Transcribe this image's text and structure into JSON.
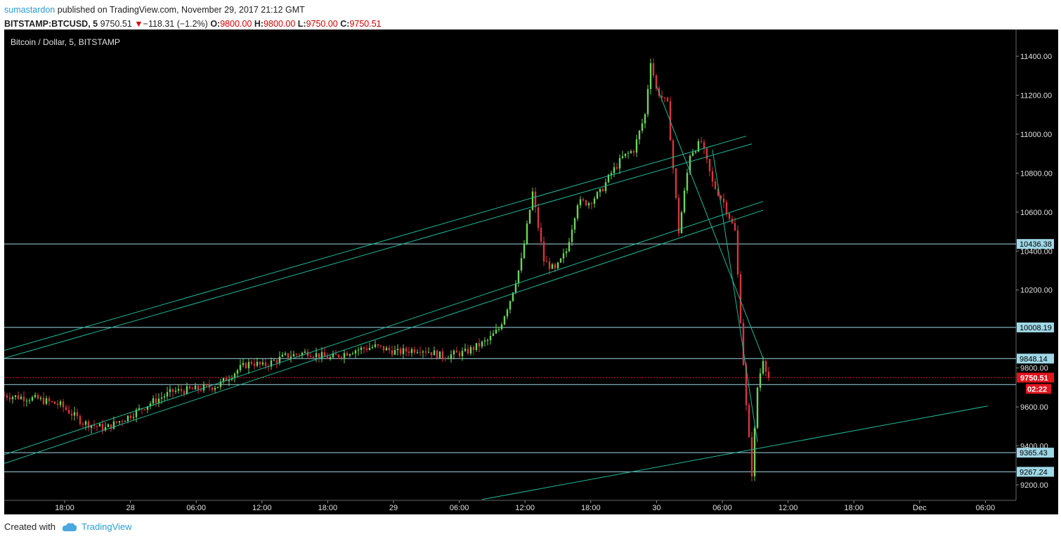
{
  "header": {
    "author": "sumastardon",
    "published_text": "published on TradingView.com, November 29, 2017 21:12 GMT",
    "symbol": "BITSTAMP:BTCUSD, 5",
    "price": "9750.51",
    "change": "−118.31 (−1.2%)",
    "o_label": "O:",
    "o_value": "9800.00",
    "h_label": "H:",
    "h_value": "9800.00",
    "l_label": "L:",
    "l_value": "9750.00",
    "c_label": "C:",
    "c_value": "9750.51"
  },
  "chart_data": {
    "type": "candlestick",
    "title": "Bitcoin / Dollar, 5, BITSTAMP",
    "ylim": [
      9130,
      11480
    ],
    "y_ticks": [
      "11400.00",
      "11200.00",
      "11000.00",
      "10800.00",
      "10600.00",
      "10400.00",
      "10200.00",
      "9800.00",
      "9600.00",
      "9400.00",
      "9200.00"
    ],
    "x_ticks": [
      "18:00",
      "28",
      "06:00",
      "12:00",
      "18:00",
      "29",
      "06:00",
      "12:00",
      "18:00",
      "30",
      "06:00",
      "12:00",
      "18:00",
      "Dec",
      "06:00"
    ],
    "price_path": [
      [
        0,
        9660
      ],
      [
        6,
        9640
      ],
      [
        10,
        9610
      ],
      [
        14,
        9520
      ],
      [
        18,
        9490
      ],
      [
        22,
        9550
      ],
      [
        26,
        9620
      ],
      [
        30,
        9680
      ],
      [
        34,
        9690
      ],
      [
        38,
        9710
      ],
      [
        42,
        9800
      ],
      [
        44,
        9830
      ],
      [
        46,
        9810
      ],
      [
        50,
        9860
      ],
      [
        54,
        9880
      ],
      [
        58,
        9850
      ],
      [
        62,
        9890
      ],
      [
        66,
        9910
      ],
      [
        70,
        9880
      ],
      [
        74,
        9900
      ],
      [
        78,
        9860
      ],
      [
        82,
        9880
      ],
      [
        86,
        9940
      ],
      [
        88,
        10000
      ],
      [
        90,
        10150
      ],
      [
        92,
        10350
      ],
      [
        94,
        10700
      ],
      [
        96,
        10350
      ],
      [
        98,
        10300
      ],
      [
        100,
        10400
      ],
      [
        102,
        10650
      ],
      [
        104,
        10650
      ],
      [
        106,
        10700
      ],
      [
        108,
        10800
      ],
      [
        110,
        10880
      ],
      [
        112,
        10920
      ],
      [
        114,
        11100
      ],
      [
        115,
        11380
      ],
      [
        116,
        11230
      ],
      [
        118,
        11150
      ],
      [
        120,
        10500
      ],
      [
        122,
        10900
      ],
      [
        124,
        10960
      ],
      [
        126,
        10750
      ],
      [
        128,
        10650
      ],
      [
        130,
        10500
      ],
      [
        131,
        10050
      ],
      [
        132,
        9600
      ],
      [
        133,
        9260
      ],
      [
        134,
        9700
      ],
      [
        135,
        9850
      ],
      [
        136,
        9750
      ]
    ],
    "trend_lines": [
      {
        "points": [
          [
            0,
            9890
          ],
          [
            132,
            10990
          ]
        ],
        "color": "#1fb99a"
      },
      {
        "points": [
          [
            0,
            9850
          ],
          [
            133,
            10950
          ]
        ],
        "color": "#1fb99a"
      },
      {
        "points": [
          [
            0,
            9355
          ],
          [
            135,
            10655
          ]
        ],
        "color": "#1fb99a"
      },
      {
        "points": [
          [
            0,
            9310
          ],
          [
            135,
            10610
          ]
        ],
        "color": "#1fb99a"
      },
      {
        "points": [
          [
            85,
            9125
          ],
          [
            175,
            9605
          ]
        ],
        "color": "#1fb99a"
      },
      {
        "points": [
          [
            116,
            11250
          ],
          [
            135,
            9850
          ]
        ],
        "color": "#1fb99a"
      },
      {
        "points": [
          [
            126,
            10920
          ],
          [
            134,
            9420
          ]
        ],
        "color": "#1fb99a"
      }
    ],
    "horizontal_levels": [
      {
        "value": 10436.38,
        "label": "10436.38"
      },
      {
        "value": 10008.19,
        "label": "10008.19"
      },
      {
        "value": 9848.14,
        "label": "9848.14"
      },
      {
        "value": 9715,
        "label": ""
      },
      {
        "value": 9365.43,
        "label": "9365.43"
      },
      {
        "value": 9267.24,
        "label": "9267.24"
      }
    ],
    "current_price": {
      "value": 9750.51,
      "label": "9750.51",
      "countdown": "02:22"
    },
    "colors": {
      "background": "#000000",
      "up": "#6cd45a",
      "down": "#d9353c",
      "trend": "#1fb99a",
      "level": "#9fd8e6",
      "current": "#e2141c"
    }
  },
  "footer": {
    "created_with": "Created with",
    "brand": "TradingView"
  }
}
